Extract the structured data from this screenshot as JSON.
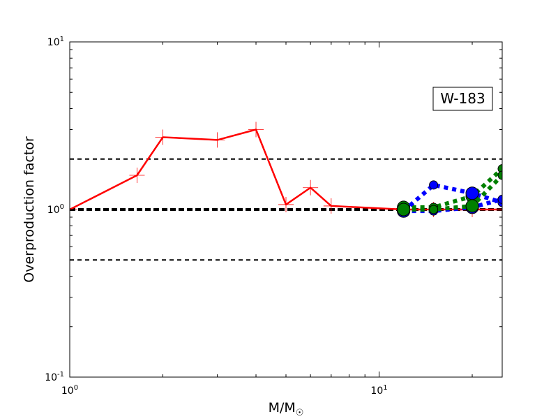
{
  "chart_data": {
    "type": "line",
    "title": "",
    "xlabel": "M/M",
    "xlabel_subscript": "☉",
    "ylabel": "Overproduction factor",
    "x_scale": "log",
    "y_scale": "log",
    "xlim": [
      1,
      25
    ],
    "ylim": [
      0.1,
      10
    ],
    "x_tick_labels": [
      {
        "value": 1,
        "base": "10",
        "exp": "0"
      },
      {
        "value": 10,
        "base": "10",
        "exp": "1"
      }
    ],
    "y_tick_labels": [
      {
        "value": 0.1,
        "base": "10",
        "exp": "-1"
      },
      {
        "value": 1,
        "base": "10",
        "exp": "0"
      },
      {
        "value": 10,
        "base": "10",
        "exp": "1"
      }
    ],
    "annotation": "W-183",
    "annotation_position": "top-right",
    "grid": false,
    "reference_lines": [
      {
        "y": 2.0,
        "style": "dashed",
        "color": "#000000",
        "weight": "thin"
      },
      {
        "y": 1.0,
        "style": "dashed",
        "color": "#000000",
        "weight": "thick"
      },
      {
        "y": 0.5,
        "style": "dashed",
        "color": "#000000",
        "weight": "thin"
      }
    ],
    "series": [
      {
        "color": "#ff0000",
        "line_style": "solid",
        "marker": "plus",
        "points": [
          {
            "x": 1.0,
            "y": 1.0
          },
          {
            "x": 1.65,
            "y": 1.6
          },
          {
            "x": 2.0,
            "y": 2.7
          },
          {
            "x": 3.0,
            "y": 2.6
          },
          {
            "x": 4.0,
            "y": 3.0
          },
          {
            "x": 5.0,
            "y": 1.07
          },
          {
            "x": 6.0,
            "y": 1.35
          },
          {
            "x": 7.0,
            "y": 1.05
          },
          {
            "x": 12.0,
            "y": 1.0
          },
          {
            "x": 15.0,
            "y": 1.0
          },
          {
            "x": 20.0,
            "y": 1.0
          },
          {
            "x": 25.0,
            "y": 1.0
          }
        ]
      },
      {
        "color": "#008000",
        "line_style": "dotted",
        "marker": "circle",
        "points": [
          {
            "x": 12.0,
            "y": 1.03
          },
          {
            "x": 15.0,
            "y": 1.03
          },
          {
            "x": 20.0,
            "y": 1.2
          },
          {
            "x": 25.0,
            "y": 1.75
          }
        ]
      },
      {
        "color": "#0000ff",
        "line_style": "dotted",
        "marker": "circle",
        "points": [
          {
            "x": 12.0,
            "y": 0.98
          },
          {
            "x": 15.0,
            "y": 1.4
          },
          {
            "x": 20.0,
            "y": 1.25
          },
          {
            "x": 25.0,
            "y": 1.1
          }
        ]
      },
      {
        "color": "#0000ff",
        "line_style": "dotted",
        "marker": "circle",
        "points": [
          {
            "x": 12.0,
            "y": 0.98
          },
          {
            "x": 15.0,
            "y": 0.98
          },
          {
            "x": 20.0,
            "y": 1.03
          },
          {
            "x": 25.0,
            "y": 1.15
          }
        ]
      },
      {
        "color": "#008000",
        "line_style": "dotted",
        "marker": "circle",
        "points": [
          {
            "x": 12.0,
            "y": 1.0
          },
          {
            "x": 15.0,
            "y": 1.0
          },
          {
            "x": 20.0,
            "y": 1.05
          },
          {
            "x": 25.0,
            "y": 1.6
          }
        ]
      }
    ]
  }
}
